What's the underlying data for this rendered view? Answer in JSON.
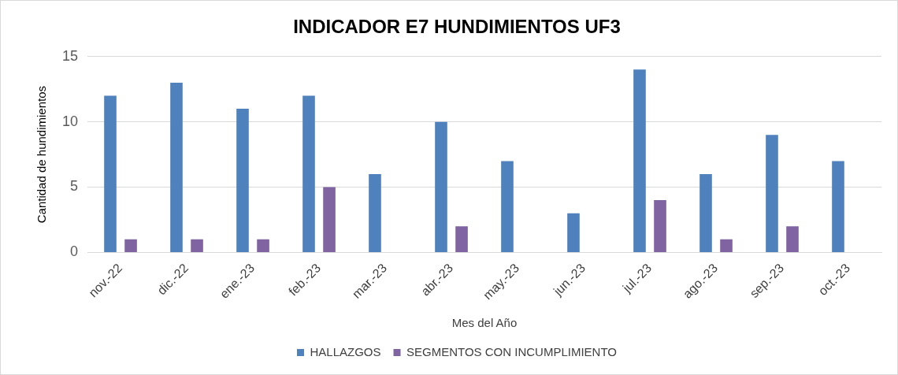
{
  "chart_data": {
    "type": "bar",
    "title": "INDICADOR E7 HUNDIMIENTOS UF3",
    "xlabel": "Mes del Año",
    "ylabel": "Cantidad de hundimientos",
    "categories": [
      "nov.-22",
      "dic.-22",
      "ene.-23",
      "feb.-23",
      "mar.-23",
      "abr.-23",
      "may.-23",
      "jun.-23",
      "jul.-23",
      "ago.-23",
      "sep.-23",
      "oct.-23"
    ],
    "series": [
      {
        "name": "HALLAZGOS",
        "color": "#4f81bd",
        "values": [
          12,
          13,
          11,
          12,
          6,
          10,
          7,
          3,
          14,
          6,
          9,
          7
        ]
      },
      {
        "name": "SEGMENTOS CON INCUMPLIMIENTO",
        "color": "#8064a2",
        "values": [
          1,
          1,
          1,
          5,
          0,
          2,
          0,
          0,
          4,
          1,
          2,
          0
        ]
      }
    ],
    "ylim": [
      0,
      15
    ],
    "yticks": [
      0,
      5,
      10,
      15
    ],
    "grid": "y",
    "legend": "bottom"
  }
}
